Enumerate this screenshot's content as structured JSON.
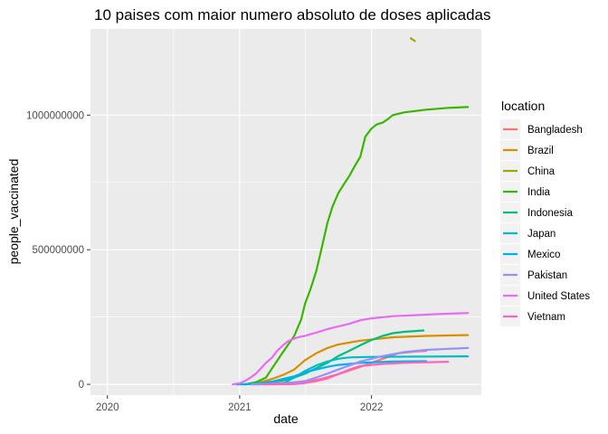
{
  "chart_data": {
    "type": "line",
    "title": "10 paises com maior numero absoluto de doses aplicadas",
    "xlabel": "date",
    "ylabel": "people_vaccinated",
    "xlim": [
      "2019-11-15",
      "2022-11-01"
    ],
    "ylim": [
      -40000000,
      1320000000
    ],
    "x_ticks": [
      "2020-01-01",
      "2021-01-01",
      "2022-01-01"
    ],
    "x_tick_labels": [
      "2020",
      "2021",
      "2022"
    ],
    "y_ticks": [
      0,
      500000000,
      1000000000
    ],
    "y_tick_labels": [
      "0",
      "500000000",
      "1000000000"
    ],
    "grid": true,
    "legend": {
      "title": "location",
      "position": "right"
    },
    "series": [
      {
        "name": "Bangladesh",
        "color": "#F8766D",
        "points": [
          [
            "2021-02-07",
            0
          ],
          [
            "2021-04-01",
            5000000
          ],
          [
            "2021-07-01",
            8000000
          ],
          [
            "2021-08-15",
            20000000
          ],
          [
            "2021-10-01",
            38000000
          ],
          [
            "2021-12-01",
            65000000
          ],
          [
            "2022-02-01",
            95000000
          ],
          [
            "2022-03-15",
            115000000
          ],
          [
            "2022-05-01",
            122000000
          ],
          [
            "2022-06-01",
            124000000
          ]
        ]
      },
      {
        "name": "Brazil",
        "color": "#D89000",
        "points": [
          [
            "2021-01-17",
            0
          ],
          [
            "2021-03-01",
            8000000
          ],
          [
            "2021-04-01",
            20000000
          ],
          [
            "2021-05-01",
            35000000
          ],
          [
            "2021-06-01",
            55000000
          ],
          [
            "2021-07-01",
            90000000
          ],
          [
            "2021-08-01",
            115000000
          ],
          [
            "2021-09-01",
            135000000
          ],
          [
            "2021-10-01",
            148000000
          ],
          [
            "2021-12-01",
            162000000
          ],
          [
            "2022-03-01",
            175000000
          ],
          [
            "2022-06-01",
            180000000
          ],
          [
            "2022-09-25",
            183000000
          ]
        ]
      },
      {
        "name": "China",
        "color": "#A3A500",
        "points": [
          [
            "2022-04-20",
            1285000000
          ],
          [
            "2022-05-01",
            1275000000
          ]
        ]
      },
      {
        "name": "India",
        "color": "#39B600",
        "points": [
          [
            "2021-01-16",
            0
          ],
          [
            "2021-02-15",
            8000000
          ],
          [
            "2021-03-15",
            25000000
          ],
          [
            "2021-04-01",
            60000000
          ],
          [
            "2021-05-01",
            120000000
          ],
          [
            "2021-06-01",
            180000000
          ],
          [
            "2021-06-20",
            240000000
          ],
          [
            "2021-07-01",
            300000000
          ],
          [
            "2021-07-15",
            350000000
          ],
          [
            "2021-08-01",
            420000000
          ],
          [
            "2021-08-15",
            500000000
          ],
          [
            "2021-09-01",
            600000000
          ],
          [
            "2021-09-15",
            660000000
          ],
          [
            "2021-10-01",
            710000000
          ],
          [
            "2021-10-15",
            740000000
          ],
          [
            "2021-11-01",
            775000000
          ],
          [
            "2021-11-15",
            810000000
          ],
          [
            "2021-12-01",
            845000000
          ],
          [
            "2021-12-15",
            920000000
          ],
          [
            "2022-01-01",
            950000000
          ],
          [
            "2022-01-15",
            965000000
          ],
          [
            "2022-02-01",
            972000000
          ],
          [
            "2022-02-15",
            985000000
          ],
          [
            "2022-03-01",
            1000000000
          ],
          [
            "2022-04-01",
            1010000000
          ],
          [
            "2022-06-01",
            1020000000
          ],
          [
            "2022-08-01",
            1027000000
          ],
          [
            "2022-09-25",
            1030000000
          ]
        ]
      },
      {
        "name": "Indonesia",
        "color": "#00BF7D",
        "points": [
          [
            "2021-01-13",
            0
          ],
          [
            "2021-03-01",
            5000000
          ],
          [
            "2021-05-01",
            15000000
          ],
          [
            "2021-06-01",
            25000000
          ],
          [
            "2021-07-01",
            40000000
          ],
          [
            "2021-08-01",
            60000000
          ],
          [
            "2021-09-01",
            80000000
          ],
          [
            "2021-10-01",
            105000000
          ],
          [
            "2021-11-01",
            125000000
          ],
          [
            "2021-12-01",
            145000000
          ],
          [
            "2022-01-01",
            165000000
          ],
          [
            "2022-02-01",
            180000000
          ],
          [
            "2022-03-01",
            190000000
          ],
          [
            "2022-04-01",
            195000000
          ],
          [
            "2022-05-25",
            200000000
          ]
        ]
      },
      {
        "name": "Japan",
        "color": "#00BFC4",
        "points": [
          [
            "2021-02-17",
            0
          ],
          [
            "2021-04-01",
            2000000
          ],
          [
            "2021-05-01",
            4000000
          ],
          [
            "2021-06-01",
            25000000
          ],
          [
            "2021-07-01",
            50000000
          ],
          [
            "2021-08-01",
            70000000
          ],
          [
            "2021-09-01",
            85000000
          ],
          [
            "2021-10-01",
            95000000
          ],
          [
            "2021-11-01",
            100000000
          ],
          [
            "2022-01-01",
            102000000
          ],
          [
            "2022-09-25",
            104000000
          ]
        ]
      },
      {
        "name": "Mexico",
        "color": "#00B0F6",
        "points": [
          [
            "2020-12-24",
            0
          ],
          [
            "2021-02-01",
            1000000
          ],
          [
            "2021-03-01",
            3000000
          ],
          [
            "2021-04-01",
            10000000
          ],
          [
            "2021-05-01",
            20000000
          ],
          [
            "2021-06-01",
            30000000
          ],
          [
            "2021-07-01",
            45000000
          ],
          [
            "2021-08-01",
            55000000
          ],
          [
            "2021-09-01",
            65000000
          ],
          [
            "2021-10-01",
            72000000
          ],
          [
            "2021-12-01",
            80000000
          ],
          [
            "2022-03-01",
            85000000
          ],
          [
            "2022-06-01",
            86000000
          ]
        ]
      },
      {
        "name": "Pakistan",
        "color": "#9590FF",
        "points": [
          [
            "2021-02-03",
            0
          ],
          [
            "2021-05-01",
            3000000
          ],
          [
            "2021-07-01",
            12000000
          ],
          [
            "2021-08-01",
            25000000
          ],
          [
            "2021-09-01",
            40000000
          ],
          [
            "2021-10-01",
            55000000
          ],
          [
            "2021-11-01",
            70000000
          ],
          [
            "2021-12-01",
            85000000
          ],
          [
            "2022-02-01",
            105000000
          ],
          [
            "2022-04-01",
            120000000
          ],
          [
            "2022-06-01",
            128000000
          ],
          [
            "2022-08-01",
            132000000
          ],
          [
            "2022-09-25",
            135000000
          ]
        ]
      },
      {
        "name": "United States",
        "color": "#E76BF3",
        "points": [
          [
            "2020-12-13",
            0
          ],
          [
            "2021-01-01",
            4000000
          ],
          [
            "2021-01-15",
            12000000
          ],
          [
            "2021-02-01",
            26000000
          ],
          [
            "2021-02-15",
            40000000
          ],
          [
            "2021-03-01",
            60000000
          ],
          [
            "2021-03-15",
            80000000
          ],
          [
            "2021-04-01",
            100000000
          ],
          [
            "2021-04-15",
            125000000
          ],
          [
            "2021-05-01",
            145000000
          ],
          [
            "2021-05-15",
            160000000
          ],
          [
            "2021-06-01",
            170000000
          ],
          [
            "2021-06-15",
            176000000
          ],
          [
            "2021-07-01",
            180000000
          ],
          [
            "2021-07-15",
            186000000
          ],
          [
            "2021-08-01",
            192000000
          ],
          [
            "2021-09-01",
            205000000
          ],
          [
            "2021-10-01",
            215000000
          ],
          [
            "2021-11-01",
            225000000
          ],
          [
            "2021-12-01",
            238000000
          ],
          [
            "2022-01-01",
            245000000
          ],
          [
            "2022-03-01",
            253000000
          ],
          [
            "2022-05-01",
            257000000
          ],
          [
            "2022-07-01",
            261000000
          ],
          [
            "2022-09-25",
            265000000
          ]
        ]
      },
      {
        "name": "Vietnam",
        "color": "#FF62BC",
        "points": [
          [
            "2021-03-08",
            0
          ],
          [
            "2021-06-01",
            1000000
          ],
          [
            "2021-07-01",
            5000000
          ],
          [
            "2021-08-01",
            12000000
          ],
          [
            "2021-09-01",
            22000000
          ],
          [
            "2021-10-01",
            38000000
          ],
          [
            "2021-11-01",
            55000000
          ],
          [
            "2021-12-01",
            68000000
          ],
          [
            "2022-02-01",
            76000000
          ],
          [
            "2022-04-01",
            80000000
          ],
          [
            "2022-06-01",
            82000000
          ],
          [
            "2022-08-01",
            84000000
          ]
        ]
      }
    ]
  }
}
